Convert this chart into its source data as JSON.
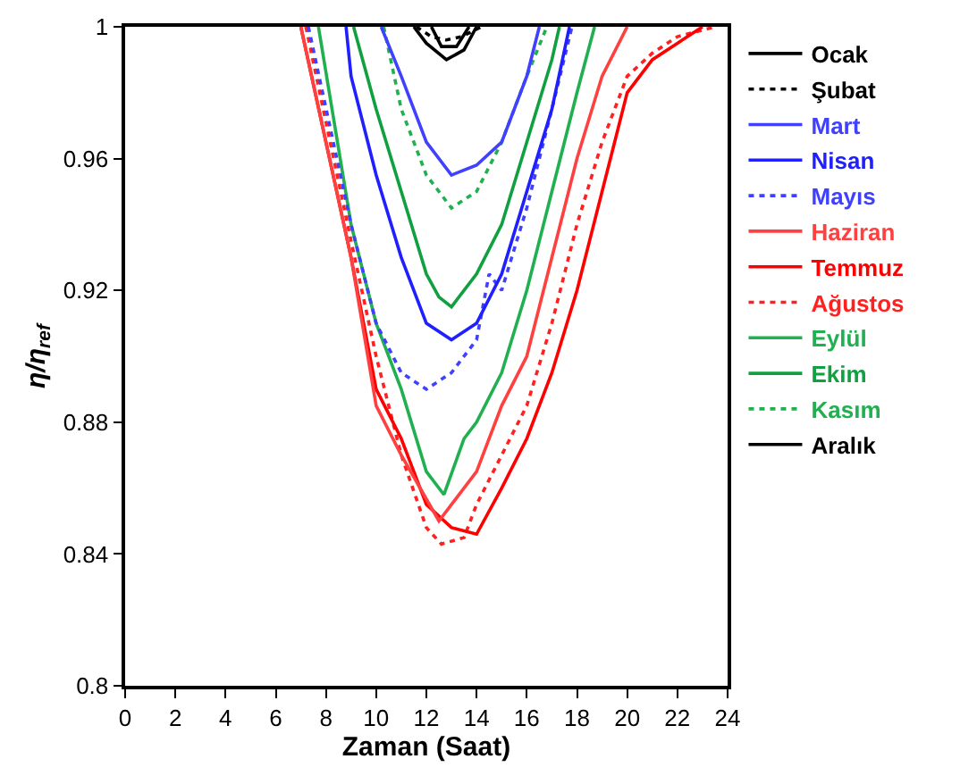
{
  "chart_data": {
    "type": "line",
    "xlabel": "Zaman (Saat)",
    "ylabel": "η/η$_{ref}$",
    "xlim": [
      0,
      24
    ],
    "xticks": [
      0,
      2,
      4,
      6,
      8,
      10,
      12,
      14,
      16,
      18,
      20,
      22,
      24
    ],
    "ylim": [
      0.8,
      1
    ],
    "yticks": [
      0.8,
      0.84,
      0.88,
      0.92,
      0.96,
      1
    ],
    "legend": "right",
    "marker": "none",
    "series": [
      {
        "name": "Ocak",
        "color": "#000000",
        "line_style": "solid",
        "x": [
          11.5,
          12,
          12.8,
          13.5,
          14
        ],
        "values": [
          1,
          0.995,
          0.99,
          0.993,
          1
        ]
      },
      {
        "name": "Şubat",
        "color": "#000000",
        "line_style": "dotted",
        "x": [
          11.6,
          12.2,
          12.8,
          13.4,
          14.2
        ],
        "values": [
          1,
          0.997,
          0.996,
          0.997,
          1
        ]
      },
      {
        "name": "Mart",
        "color": "#4040ff",
        "line_style": "solid",
        "x": [
          10.2,
          11,
          12,
          13,
          14,
          15,
          16,
          16.5
        ],
        "values": [
          1,
          0.985,
          0.965,
          0.955,
          0.958,
          0.965,
          0.985,
          1
        ]
      },
      {
        "name": "Nisan",
        "color": "#2020ff",
        "line_style": "solid",
        "x": [
          8.8,
          9,
          10,
          11,
          12,
          13,
          14,
          15,
          16,
          17,
          17.7
        ],
        "values": [
          1,
          0.985,
          0.955,
          0.93,
          0.91,
          0.905,
          0.91,
          0.925,
          0.95,
          0.975,
          1
        ]
      },
      {
        "name": "Mayıs",
        "color": "#4040ff",
        "line_style": "dotted",
        "x": [
          7.3,
          9,
          10,
          11,
          12,
          13,
          14,
          14.5,
          15,
          16,
          17,
          17.8
        ],
        "values": [
          1,
          0.94,
          0.91,
          0.895,
          0.89,
          0.895,
          0.905,
          0.925,
          0.92,
          0.945,
          0.975,
          1
        ]
      },
      {
        "name": "Haziran",
        "color": "#ff4040",
        "line_style": "solid",
        "x": [
          7,
          9,
          10,
          11,
          12.5,
          14,
          15,
          16,
          17,
          18,
          19,
          20
        ],
        "values": [
          1,
          0.93,
          0.885,
          0.87,
          0.85,
          0.865,
          0.885,
          0.9,
          0.93,
          0.96,
          0.985,
          1
        ]
      },
      {
        "name": "Temmuz",
        "color": "#ff0000",
        "line_style": "solid",
        "x": [
          7,
          9,
          10,
          11,
          12,
          13,
          14,
          15,
          16,
          17,
          18,
          19,
          20,
          21,
          22,
          23
        ],
        "values": [
          1,
          0.93,
          0.89,
          0.875,
          0.855,
          0.848,
          0.846,
          0.86,
          0.875,
          0.895,
          0.92,
          0.95,
          0.98,
          0.99,
          0.995,
          1
        ]
      },
      {
        "name": "Ağustos",
        "color": "#ff2020",
        "line_style": "dotted",
        "x": [
          7.2,
          9,
          10,
          11,
          12,
          12.6,
          13.5,
          14,
          15,
          16,
          17,
          18,
          19,
          20,
          21,
          22,
          23.5
        ],
        "values": [
          1,
          0.935,
          0.9,
          0.87,
          0.848,
          0.843,
          0.845,
          0.855,
          0.87,
          0.885,
          0.91,
          0.94,
          0.965,
          0.985,
          0.992,
          0.997,
          1
        ]
      },
      {
        "name": "Eylül",
        "color": "#20b050",
        "line_style": "solid",
        "x": [
          7.7,
          9,
          10,
          11,
          12,
          12.7,
          13.5,
          14,
          15,
          16,
          17,
          18,
          18.7
        ],
        "values": [
          1,
          0.94,
          0.91,
          0.89,
          0.865,
          0.858,
          0.875,
          0.88,
          0.895,
          0.92,
          0.95,
          0.98,
          1
        ]
      },
      {
        "name": "Ekim",
        "color": "#10a040",
        "line_style": "solid",
        "x": [
          9.1,
          10,
          11,
          12,
          12.5,
          13,
          14,
          15,
          16,
          17,
          17.3
        ],
        "values": [
          1,
          0.975,
          0.95,
          0.925,
          0.918,
          0.915,
          0.925,
          0.94,
          0.965,
          0.99,
          1
        ]
      },
      {
        "name": "Kasım",
        "color": "#20b050",
        "line_style": "dotted",
        "x": [
          10.3,
          11,
          12,
          13,
          14,
          15,
          16,
          16.8
        ],
        "values": [
          1,
          0.975,
          0.955,
          0.945,
          0.95,
          0.965,
          0.985,
          1
        ]
      },
      {
        "name": "Aralık",
        "color": "#000000",
        "line_style": "solid",
        "x": [
          12.2,
          12.6,
          13.2,
          13.7
        ],
        "values": [
          1,
          0.994,
          0.994,
          1
        ]
      }
    ]
  }
}
